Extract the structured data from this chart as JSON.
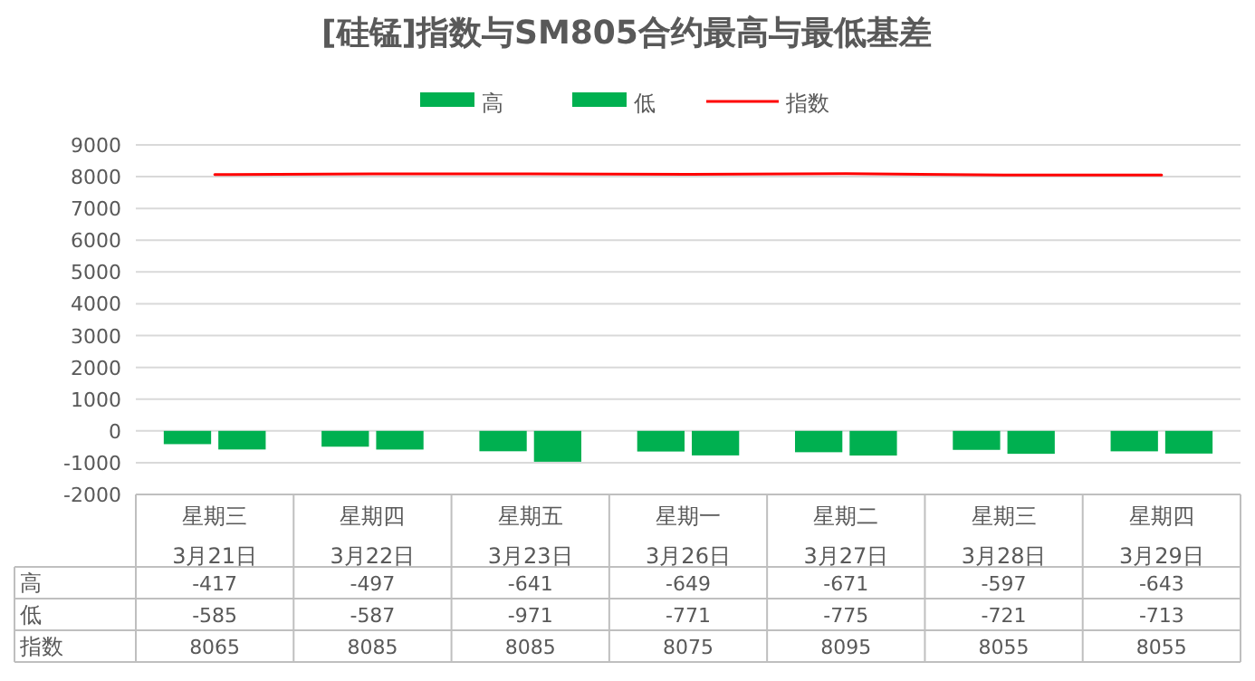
{
  "chart_data": {
    "type": "bar",
    "title": "[硅锰]指数与SM805合约最高与最低基差",
    "categories": [
      "星期三\n3月21日",
      "星期四\n3月22日",
      "星期五\n3月23日",
      "星期一\n3月26日",
      "星期二\n3月27日",
      "星期三\n3月28日",
      "星期四\n3月29日"
    ],
    "series": [
      {
        "name": "高",
        "color": "#00b050",
        "values": [
          -417,
          -497,
          -641,
          -649,
          -671,
          -597,
          -643
        ]
      },
      {
        "name": "低",
        "color": "#00b050",
        "values": [
          -585,
          -587,
          -971,
          -771,
          -775,
          -721,
          -713
        ]
      },
      {
        "name": "指数",
        "type": "line",
        "color": "#ff0000",
        "values": [
          8065,
          8085,
          8085,
          8075,
          8095,
          8055,
          8055
        ]
      }
    ],
    "ylim": [
      -2000,
      9000
    ],
    "yticks": [
      -2000,
      -1000,
      0,
      1000,
      2000,
      3000,
      4000,
      5000,
      6000,
      7000,
      8000,
      9000
    ],
    "grid": "y",
    "legend": "top",
    "data_labels": true
  }
}
